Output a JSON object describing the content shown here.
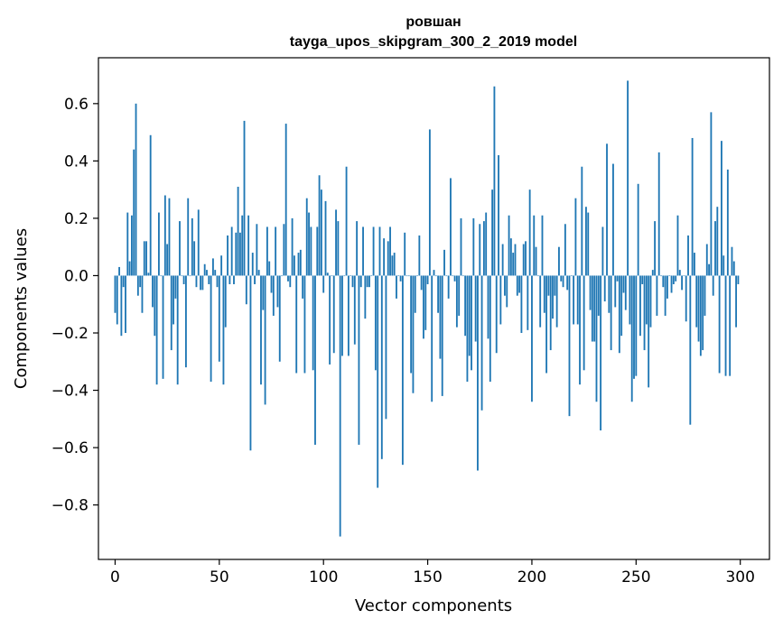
{
  "chart_data": {
    "type": "bar",
    "title": "ровшан",
    "subtitle": "tayga_upos_skipgram_300_2_2019 model",
    "xlabel": "Vector components",
    "ylabel": "Components values",
    "xlim": [
      -8,
      314
    ],
    "ylim": [
      -0.99,
      0.76
    ],
    "x_ticks": [
      0,
      50,
      100,
      150,
      200,
      250,
      300
    ],
    "x_tick_labels": [
      "0",
      "50",
      "100",
      "150",
      "200",
      "250",
      "300"
    ],
    "y_ticks": [
      -0.8,
      -0.6,
      -0.4,
      -0.2,
      0.0,
      0.2,
      0.4,
      0.6
    ],
    "y_tick_labels": [
      "−0.8",
      "−0.6",
      "−0.4",
      "−0.2",
      "0.0",
      "0.2",
      "0.4",
      "0.6"
    ],
    "grid": false,
    "bar_color": "#1f77b4",
    "series": [
      {
        "values": [
          -0.13,
          -0.17,
          0.03,
          -0.21,
          -0.04,
          -0.2,
          0.22,
          0.05,
          0.21,
          0.44,
          0.6,
          -0.07,
          -0.04,
          -0.13,
          0.12,
          0.12,
          0.01,
          0.49,
          -0.11,
          -0.21,
          -0.38,
          0.22,
          0.0,
          -0.36,
          0.28,
          0.11,
          0.27,
          -0.26,
          -0.17,
          -0.08,
          -0.38,
          0.19,
          0.0,
          -0.03,
          -0.32,
          0.27,
          0.0,
          0.2,
          0.12,
          -0.04,
          0.23,
          -0.05,
          -0.05,
          0.04,
          0.02,
          -0.03,
          -0.37,
          0.06,
          0.02,
          -0.04,
          -0.3,
          0.07,
          -0.38,
          -0.18,
          0.14,
          -0.03,
          0.17,
          -0.03,
          0.15,
          0.31,
          0.15,
          0.21,
          0.54,
          -0.1,
          0.21,
          -0.61,
          0.08,
          -0.03,
          0.18,
          0.02,
          -0.38,
          -0.12,
          -0.45,
          0.17,
          0.05,
          -0.06,
          -0.14,
          0.17,
          -0.11,
          -0.3,
          0.0,
          0.18,
          0.53,
          -0.02,
          -0.04,
          0.2,
          0.07,
          -0.34,
          0.08,
          0.09,
          -0.08,
          -0.34,
          0.27,
          0.22,
          0.17,
          -0.33,
          -0.59,
          0.17,
          0.35,
          0.3,
          -0.06,
          0.26,
          0.01,
          -0.31,
          0.0,
          -0.27,
          0.23,
          0.19,
          -0.91,
          -0.28,
          0.0,
          0.38,
          -0.28,
          0.0,
          -0.04,
          -0.24,
          0.19,
          -0.59,
          -0.04,
          0.17,
          -0.15,
          -0.04,
          -0.04,
          0.0,
          0.17,
          -0.33,
          -0.74,
          0.17,
          -0.64,
          0.13,
          -0.5,
          0.12,
          0.17,
          0.07,
          0.08,
          -0.08,
          0.0,
          -0.02,
          -0.66,
          0.15,
          0.0,
          0.0,
          -0.34,
          -0.41,
          -0.13,
          0.0,
          0.14,
          -0.05,
          -0.22,
          -0.19,
          -0.03,
          0.51,
          -0.44,
          0.02,
          0.0,
          -0.13,
          -0.29,
          -0.42,
          0.09,
          0.0,
          -0.08,
          0.34,
          0.0,
          -0.02,
          -0.18,
          -0.14,
          0.2,
          0.0,
          -0.21,
          -0.37,
          -0.28,
          -0.33,
          0.2,
          -0.23,
          -0.68,
          0.18,
          -0.47,
          0.19,
          0.22,
          -0.22,
          -0.37,
          0.3,
          0.66,
          -0.27,
          0.42,
          -0.17,
          0.11,
          -0.07,
          -0.11,
          0.21,
          0.13,
          0.08,
          0.11,
          -0.07,
          -0.06,
          -0.2,
          0.11,
          0.12,
          -0.19,
          0.3,
          -0.44,
          0.21,
          0.1,
          0.0,
          -0.18,
          0.21,
          -0.13,
          -0.34,
          -0.07,
          -0.26,
          -0.15,
          -0.07,
          -0.18,
          0.1,
          -0.02,
          -0.04,
          0.18,
          -0.05,
          -0.49,
          0.0,
          -0.17,
          0.27,
          -0.17,
          -0.38,
          0.38,
          -0.33,
          0.24,
          0.22,
          -0.12,
          -0.23,
          -0.23,
          -0.44,
          -0.14,
          -0.54,
          0.17,
          -0.09,
          0.46,
          -0.13,
          -0.26,
          0.39,
          -0.11,
          -0.02,
          -0.27,
          -0.21,
          -0.06,
          -0.12,
          0.68,
          -0.17,
          -0.44,
          -0.36,
          -0.35,
          0.32,
          -0.21,
          -0.03,
          -0.26,
          -0.17,
          -0.39,
          -0.18,
          0.02,
          0.19,
          -0.14,
          0.43,
          0.0,
          -0.04,
          -0.14,
          -0.08,
          0.0,
          -0.06,
          -0.03,
          -0.02,
          0.21,
          0.02,
          -0.05,
          0.0,
          -0.16,
          0.14,
          -0.52,
          0.48,
          0.08,
          -0.18,
          -0.23,
          -0.28,
          -0.26,
          -0.14,
          0.11,
          0.04,
          0.57,
          -0.07,
          0.19,
          0.24,
          -0.34,
          0.47,
          0.07,
          -0.35,
          0.37,
          -0.35,
          0.1,
          0.05,
          -0.18,
          -0.03
        ]
      }
    ]
  }
}
